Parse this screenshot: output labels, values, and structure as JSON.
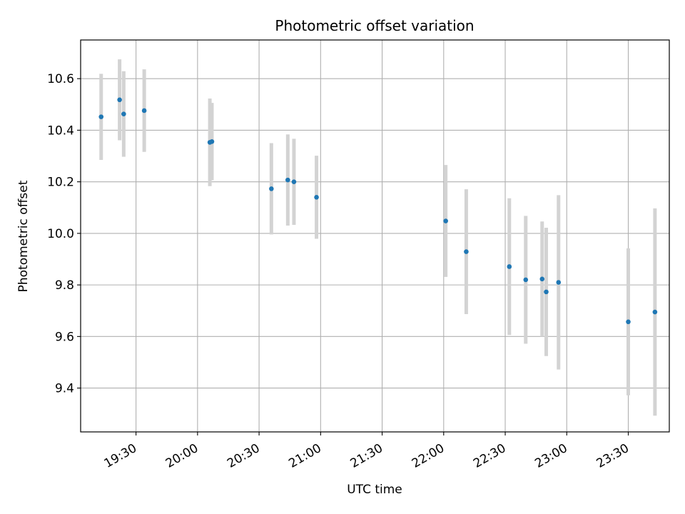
{
  "chart_data": {
    "type": "scatter",
    "title": "Photometric offset variation",
    "xlabel": "UTC time",
    "ylabel": "Photometric offset",
    "x_ticks": [
      "19:30",
      "20:00",
      "20:30",
      "21:00",
      "21:30",
      "22:00",
      "22:30",
      "23:00",
      "23:30"
    ],
    "y_ticks": [
      "9.4",
      "9.6",
      "9.8",
      "10.0",
      "10.2",
      "10.4",
      "10.6"
    ],
    "ylim": [
      9.23,
      10.75
    ],
    "xlim": [
      "19:03",
      "23:50"
    ],
    "grid": true,
    "colors": {
      "points": "#1f77b4",
      "errorbars": "#d3d3d3",
      "grid": "#b0b0b0"
    },
    "points": [
      {
        "time": "19:13",
        "value": 10.452,
        "err": 0.167
      },
      {
        "time": "19:22",
        "value": 10.518,
        "err": 0.157
      },
      {
        "time": "19:24",
        "value": 10.463,
        "err": 0.166
      },
      {
        "time": "19:34",
        "value": 10.476,
        "err": 0.16
      },
      {
        "time": "20:06",
        "value": 10.353,
        "err": 0.17
      },
      {
        "time": "20:07",
        "value": 10.356,
        "err": 0.15
      },
      {
        "time": "20:36",
        "value": 10.173,
        "err": 0.177
      },
      {
        "time": "20:44",
        "value": 10.207,
        "err": 0.177
      },
      {
        "time": "20:47",
        "value": 10.2,
        "err": 0.167
      },
      {
        "time": "20:58",
        "value": 10.14,
        "err": 0.161
      },
      {
        "time": "22:01",
        "value": 10.048,
        "err": 0.217
      },
      {
        "time": "22:11",
        "value": 9.929,
        "err": 0.242
      },
      {
        "time": "22:32",
        "value": 9.871,
        "err": 0.265
      },
      {
        "time": "22:40",
        "value": 9.82,
        "err": 0.248
      },
      {
        "time": "22:48",
        "value": 9.823,
        "err": 0.223
      },
      {
        "time": "22:50",
        "value": 9.773,
        "err": 0.249
      },
      {
        "time": "22:56",
        "value": 9.81,
        "err": 0.338
      },
      {
        "time": "23:30",
        "value": 9.657,
        "err": 0.285
      },
      {
        "time": "23:43",
        "value": 9.695,
        "err": 0.402
      }
    ]
  }
}
